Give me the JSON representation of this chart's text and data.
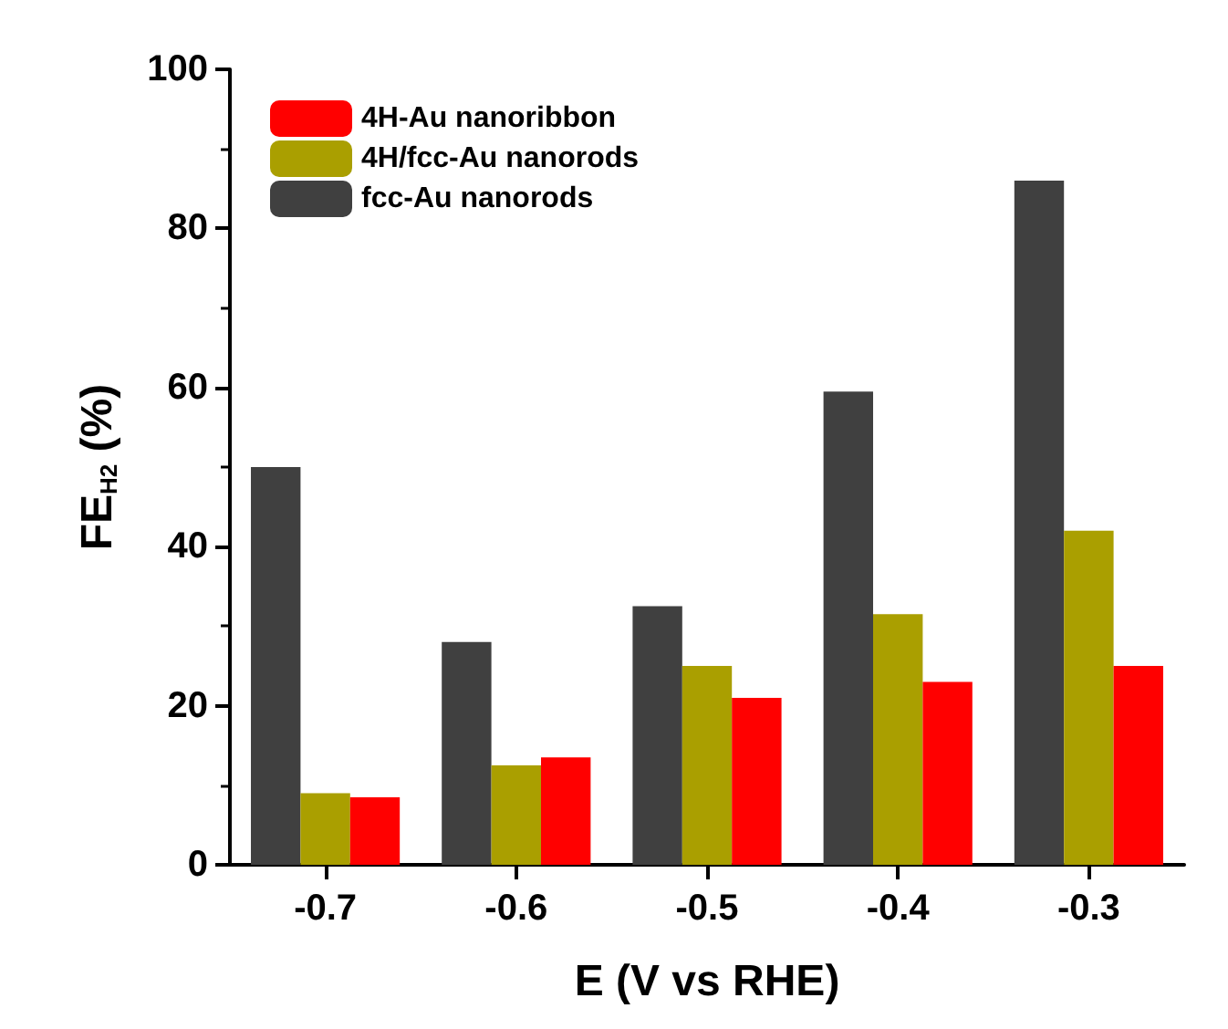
{
  "chart_data": {
    "type": "bar",
    "xlabel": "E (V vs RHE)",
    "ylabel": "FE$_{H2}$ (%)",
    "categories": [
      "-0.7",
      "-0.6",
      "-0.5",
      "-0.4",
      "-0.3"
    ],
    "series": [
      {
        "name": "4H-Au nanoribbon",
        "color": "#ff0000",
        "values": [
          8.5,
          13.5,
          21,
          23,
          25
        ]
      },
      {
        "name": "4H/fcc-Au nanorods",
        "color": "#aa9f00",
        "values": [
          9,
          12.5,
          25,
          31.5,
          42
        ]
      },
      {
        "name": "fcc-Au nanorods",
        "color": "#404040",
        "values": [
          50,
          28,
          32.5,
          59.5,
          86
        ]
      }
    ],
    "ylim": [
      0,
      100
    ],
    "yticks": [
      0,
      20,
      40,
      60,
      80,
      100
    ],
    "grid": false,
    "legend": "top left"
  }
}
